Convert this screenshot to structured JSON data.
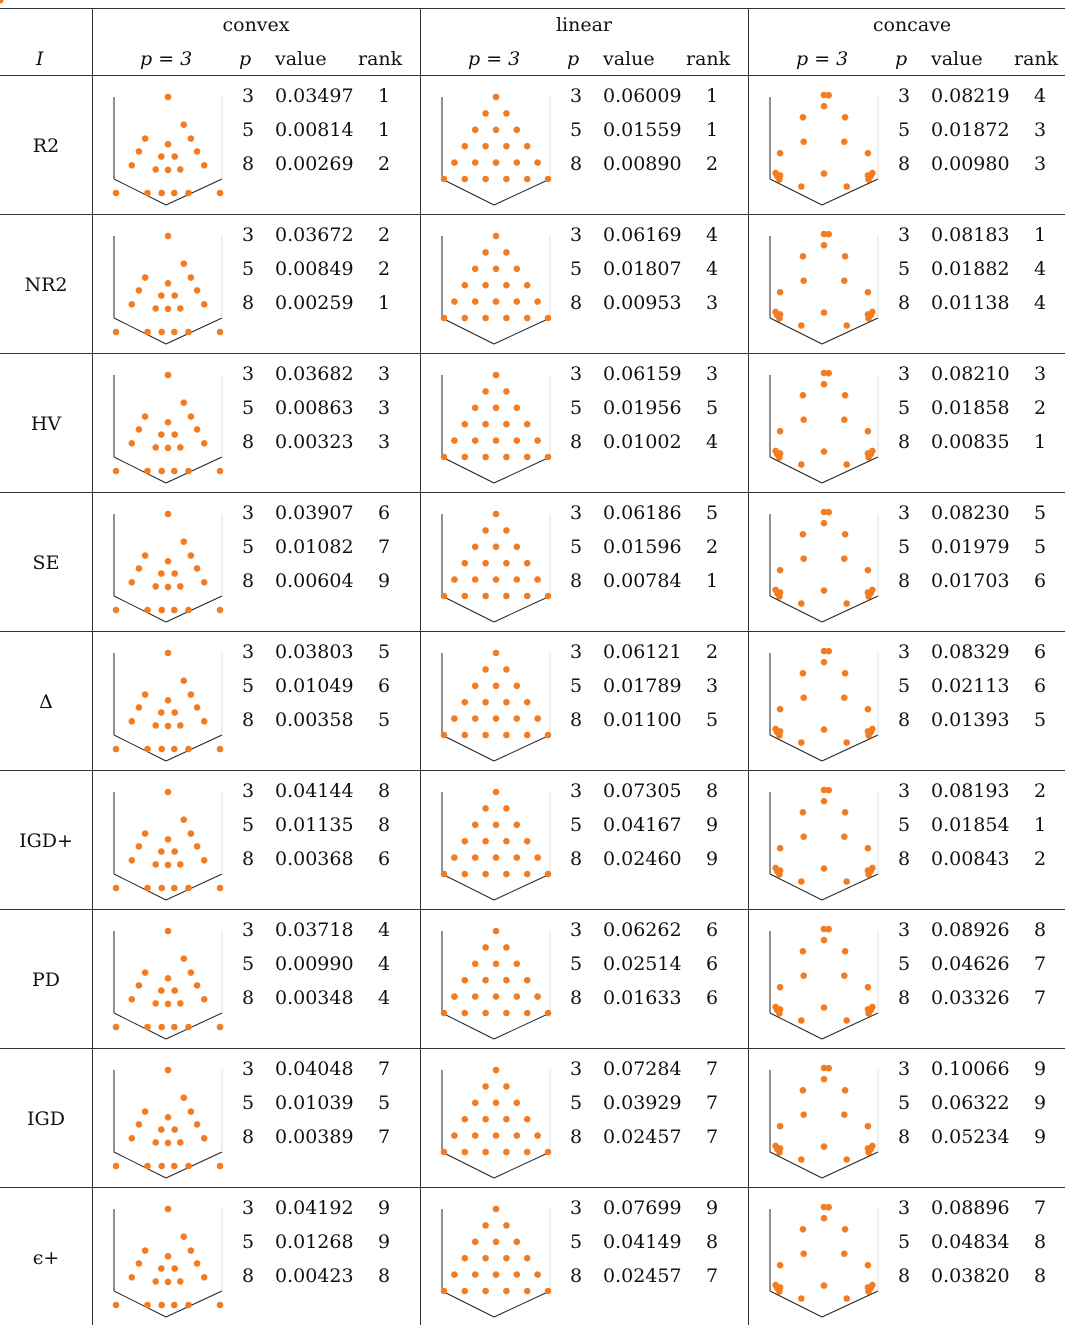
{
  "header": {
    "indicator": "I",
    "groups": [
      "convex",
      "linear",
      "concave"
    ],
    "columns": [
      "p = 3",
      "p",
      "value",
      "rank"
    ]
  },
  "rows": [
    {
      "indicator": "R2",
      "cells": [
        [
          [
            "3",
            "0.03497",
            "1"
          ],
          [
            "5",
            "0.00814",
            "1"
          ],
          [
            "8",
            "0.00269",
            "2"
          ]
        ],
        [
          [
            "3",
            "0.06009",
            "1"
          ],
          [
            "5",
            "0.01559",
            "1"
          ],
          [
            "8",
            "0.00890",
            "2"
          ]
        ],
        [
          [
            "3",
            "0.08219",
            "4"
          ],
          [
            "5",
            "0.01872",
            "3"
          ],
          [
            "8",
            "0.00980",
            "3"
          ]
        ]
      ]
    },
    {
      "indicator": "NR2",
      "cells": [
        [
          [
            "3",
            "0.03672",
            "2"
          ],
          [
            "5",
            "0.00849",
            "2"
          ],
          [
            "8",
            "0.00259",
            "1"
          ]
        ],
        [
          [
            "3",
            "0.06169",
            "4"
          ],
          [
            "5",
            "0.01807",
            "4"
          ],
          [
            "8",
            "0.00953",
            "3"
          ]
        ],
        [
          [
            "3",
            "0.08183",
            "1"
          ],
          [
            "5",
            "0.01882",
            "4"
          ],
          [
            "8",
            "0.01138",
            "4"
          ]
        ]
      ]
    },
    {
      "indicator": "HV",
      "cells": [
        [
          [
            "3",
            "0.03682",
            "3"
          ],
          [
            "5",
            "0.00863",
            "3"
          ],
          [
            "8",
            "0.00323",
            "3"
          ]
        ],
        [
          [
            "3",
            "0.06159",
            "3"
          ],
          [
            "5",
            "0.01956",
            "5"
          ],
          [
            "8",
            "0.01002",
            "4"
          ]
        ],
        [
          [
            "3",
            "0.08210",
            "3"
          ],
          [
            "5",
            "0.01858",
            "2"
          ],
          [
            "8",
            "0.00835",
            "1"
          ]
        ]
      ]
    },
    {
      "indicator": "SE",
      "cells": [
        [
          [
            "3",
            "0.03907",
            "6"
          ],
          [
            "5",
            "0.01082",
            "7"
          ],
          [
            "8",
            "0.00604",
            "9"
          ]
        ],
        [
          [
            "3",
            "0.06186",
            "5"
          ],
          [
            "5",
            "0.01596",
            "2"
          ],
          [
            "8",
            "0.00784",
            "1"
          ]
        ],
        [
          [
            "3",
            "0.08230",
            "5"
          ],
          [
            "5",
            "0.01979",
            "5"
          ],
          [
            "8",
            "0.01703",
            "6"
          ]
        ]
      ]
    },
    {
      "indicator": "Δ",
      "cells": [
        [
          [
            "3",
            "0.03803",
            "5"
          ],
          [
            "5",
            "0.01049",
            "6"
          ],
          [
            "8",
            "0.00358",
            "5"
          ]
        ],
        [
          [
            "3",
            "0.06121",
            "2"
          ],
          [
            "5",
            "0.01789",
            "3"
          ],
          [
            "8",
            "0.01100",
            "5"
          ]
        ],
        [
          [
            "3",
            "0.08329",
            "6"
          ],
          [
            "5",
            "0.02113",
            "6"
          ],
          [
            "8",
            "0.01393",
            "5"
          ]
        ]
      ]
    },
    {
      "indicator": "IGD+",
      "cells": [
        [
          [
            "3",
            "0.04144",
            "8"
          ],
          [
            "5",
            "0.01135",
            "8"
          ],
          [
            "8",
            "0.00368",
            "6"
          ]
        ],
        [
          [
            "3",
            "0.07305",
            "8"
          ],
          [
            "5",
            "0.04167",
            "9"
          ],
          [
            "8",
            "0.02460",
            "9"
          ]
        ],
        [
          [
            "3",
            "0.08193",
            "2"
          ],
          [
            "5",
            "0.01854",
            "1"
          ],
          [
            "8",
            "0.00843",
            "2"
          ]
        ]
      ]
    },
    {
      "indicator": "PD",
      "cells": [
        [
          [
            "3",
            "0.03718",
            "4"
          ],
          [
            "5",
            "0.00990",
            "4"
          ],
          [
            "8",
            "0.00348",
            "4"
          ]
        ],
        [
          [
            "3",
            "0.06262",
            "6"
          ],
          [
            "5",
            "0.02514",
            "6"
          ],
          [
            "8",
            "0.01633",
            "6"
          ]
        ],
        [
          [
            "3",
            "0.08926",
            "8"
          ],
          [
            "5",
            "0.04626",
            "7"
          ],
          [
            "8",
            "0.03326",
            "7"
          ]
        ]
      ]
    },
    {
      "indicator": "IGD",
      "cells": [
        [
          [
            "3",
            "0.04048",
            "7"
          ],
          [
            "5",
            "0.01039",
            "5"
          ],
          [
            "8",
            "0.00389",
            "7"
          ]
        ],
        [
          [
            "3",
            "0.07284",
            "7"
          ],
          [
            "5",
            "0.03929",
            "7"
          ],
          [
            "8",
            "0.02457",
            "7"
          ]
        ],
        [
          [
            "3",
            "0.10066",
            "9"
          ],
          [
            "5",
            "0.06322",
            "9"
          ],
          [
            "8",
            "0.05234",
            "9"
          ]
        ]
      ]
    },
    {
      "indicator": "ϵ+",
      "cells": [
        [
          [
            "3",
            "0.04192",
            "9"
          ],
          [
            "5",
            "0.01268",
            "9"
          ],
          [
            "8",
            "0.00423",
            "8"
          ]
        ],
        [
          [
            "3",
            "0.07699",
            "9"
          ],
          [
            "5",
            "0.04149",
            "8"
          ],
          [
            "8",
            "0.02457",
            "7"
          ]
        ],
        [
          [
            "3",
            "0.08896",
            "7"
          ],
          [
            "5",
            "0.04834",
            "8"
          ],
          [
            "8",
            "0.03820",
            "8"
          ]
        ]
      ]
    }
  ]
}
